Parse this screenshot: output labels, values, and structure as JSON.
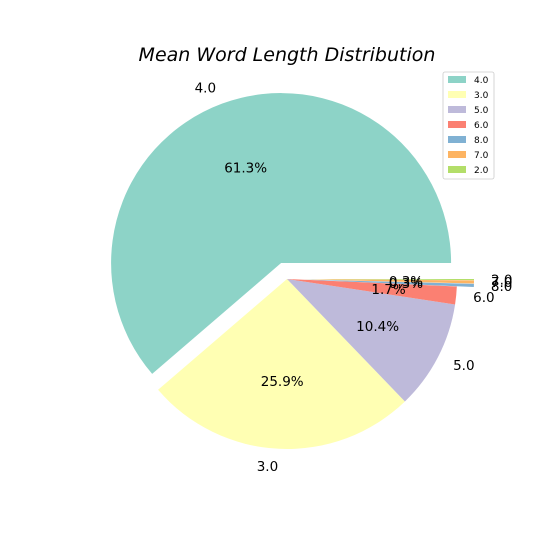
{
  "chart_data": {
    "type": "pie",
    "title": "Mean Word Length Distribution",
    "slices": [
      {
        "label": "4.0",
        "percent": 61.3,
        "pct_label": "61.3%",
        "color": "#8dd3c7",
        "explode": true
      },
      {
        "label": "3.0",
        "percent": 25.9,
        "pct_label": "25.9%",
        "color": "#ffffb3",
        "explode": false
      },
      {
        "label": "5.0",
        "percent": 10.4,
        "pct_label": "10.4%",
        "color": "#bebada",
        "explode": false
      },
      {
        "label": "6.0",
        "percent": 1.7,
        "pct_label": "1.7%",
        "color": "#fb8072",
        "explode": false
      },
      {
        "label": "8.0",
        "percent": 0.3,
        "pct_label": "0.3%",
        "color": "#80b1d3",
        "explode": true
      },
      {
        "label": "7.0",
        "percent": 0.3,
        "pct_label": "0.3%",
        "color": "#fdb462",
        "explode": true
      },
      {
        "label": "2.0",
        "percent": 0.1,
        "pct_label": "",
        "color": "#b3de69",
        "explode": true
      }
    ],
    "legend_placement": "top-right"
  }
}
